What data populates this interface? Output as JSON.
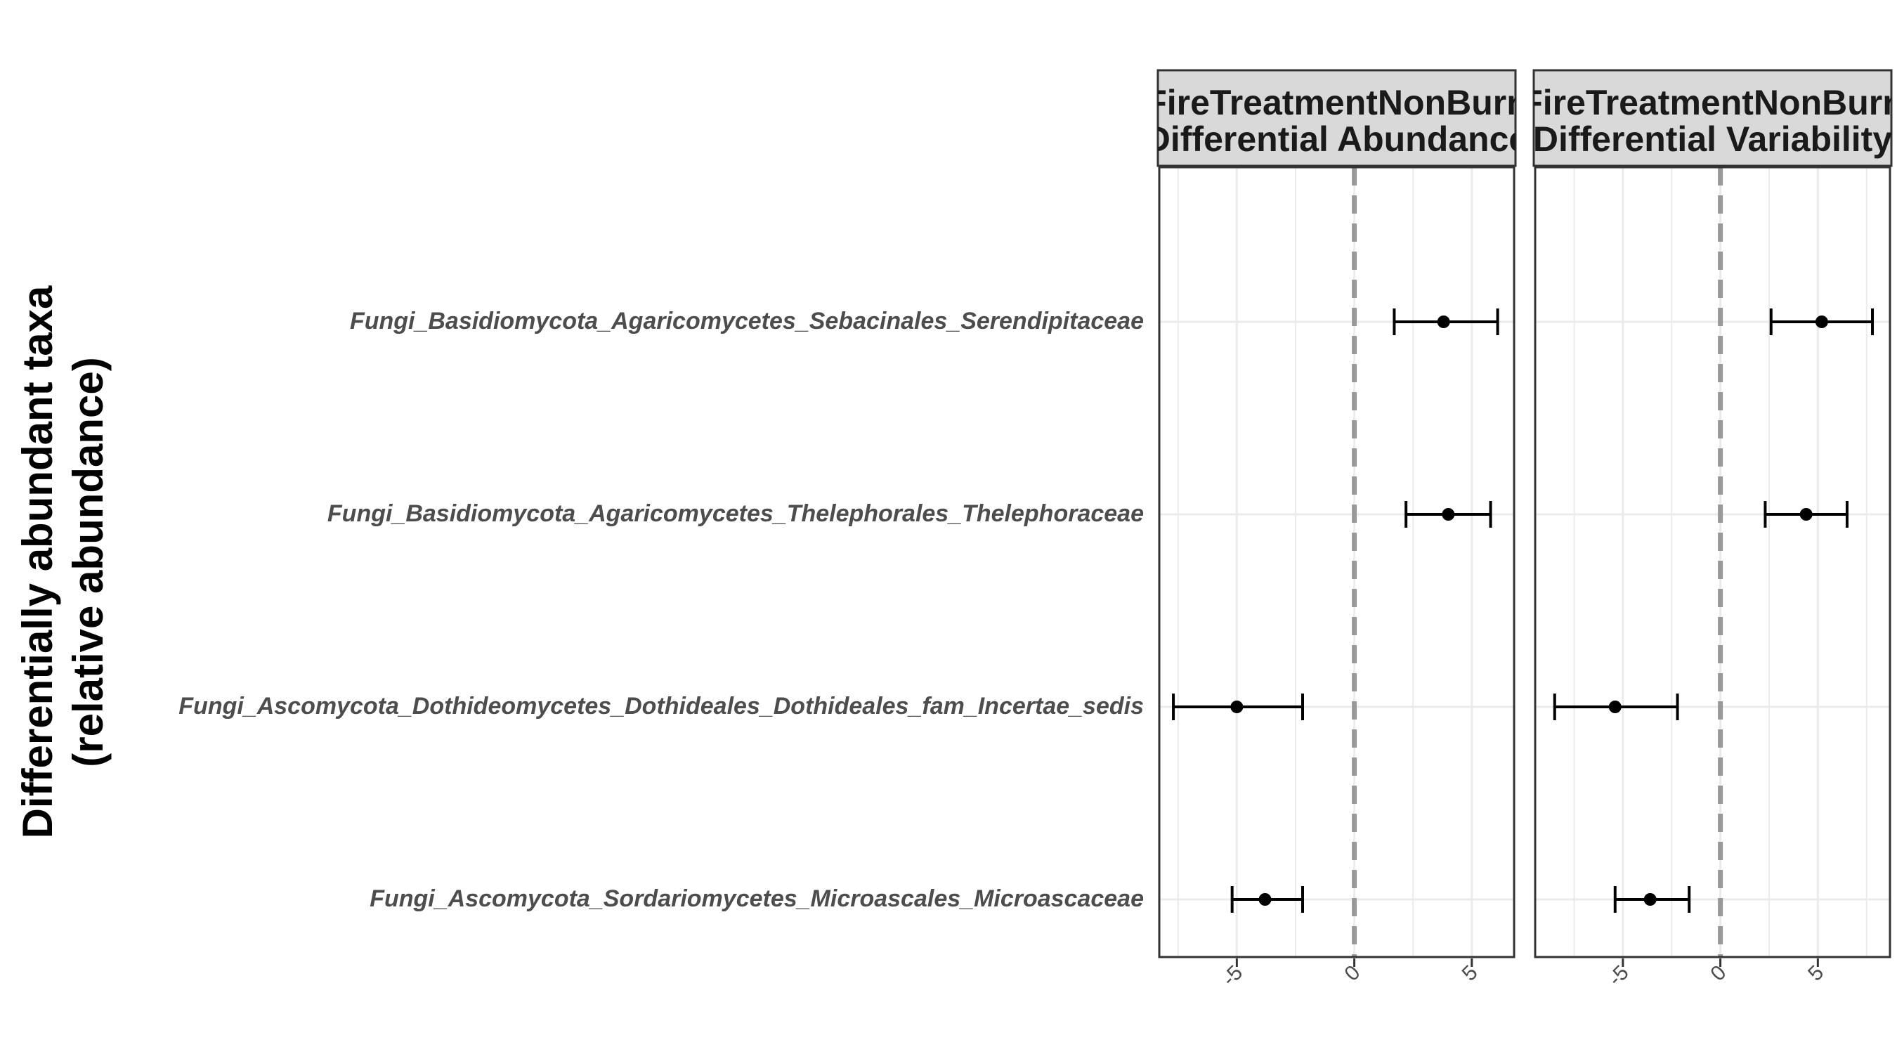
{
  "chart_data": {
    "type": "scatter",
    "ylabel_lines": [
      "Differentially abundant taxa",
      "(relative abundance)"
    ],
    "xlabel": "",
    "categories": [
      "Fungi_Basidiomycota_Agaricomycetes_Sebacinales_Serendipitaceae",
      "Fungi_Basidiomycota_Agaricomycetes_Thelephorales_Thelephoraceae",
      "Fungi_Ascomycota_Dothideomycetes_Dothideales_Dothideales_fam_Incertae_sedis",
      "Fungi_Ascomycota_Sordariomycetes_Microascales_Microascaceae"
    ],
    "grid": true,
    "reference_line": {
      "x": 0,
      "style": "dashed",
      "color": "#999999"
    },
    "colors": {
      "point": "#000000",
      "strip_fill": "#d9d9d9",
      "gridline": "#ebebeb"
    },
    "panels": [
      {
        "strip_lines": [
          "FireTreatmentNonBurn",
          "Differential Abundance"
        ],
        "xlim": [
          -8.3,
          6.8
        ],
        "xticks": [
          -5,
          0,
          5
        ],
        "xtick_labels": [
          "-5",
          "0",
          "5"
        ],
        "points": [
          {
            "estimate": 3.8,
            "lower": 1.7,
            "upper": 6.1
          },
          {
            "estimate": 4.0,
            "lower": 2.2,
            "upper": 5.8
          },
          {
            "estimate": -5.0,
            "lower": -7.7,
            "upper": -2.2
          },
          {
            "estimate": -3.8,
            "lower": -5.2,
            "upper": -2.2
          }
        ]
      },
      {
        "strip_lines": [
          "FireTreatmentNonBurn",
          "Differential Variability"
        ],
        "xlim": [
          -9.5,
          8.7
        ],
        "xticks": [
          -5,
          0,
          5
        ],
        "xtick_labels": [
          "-5",
          "0",
          "5"
        ],
        "points": [
          {
            "estimate": 5.2,
            "lower": 2.6,
            "upper": 7.8
          },
          {
            "estimate": 4.4,
            "lower": 2.3,
            "upper": 6.5
          },
          {
            "estimate": -5.4,
            "lower": -8.5,
            "upper": -2.2
          },
          {
            "estimate": -3.6,
            "lower": -5.4,
            "upper": -1.6
          }
        ]
      }
    ]
  }
}
